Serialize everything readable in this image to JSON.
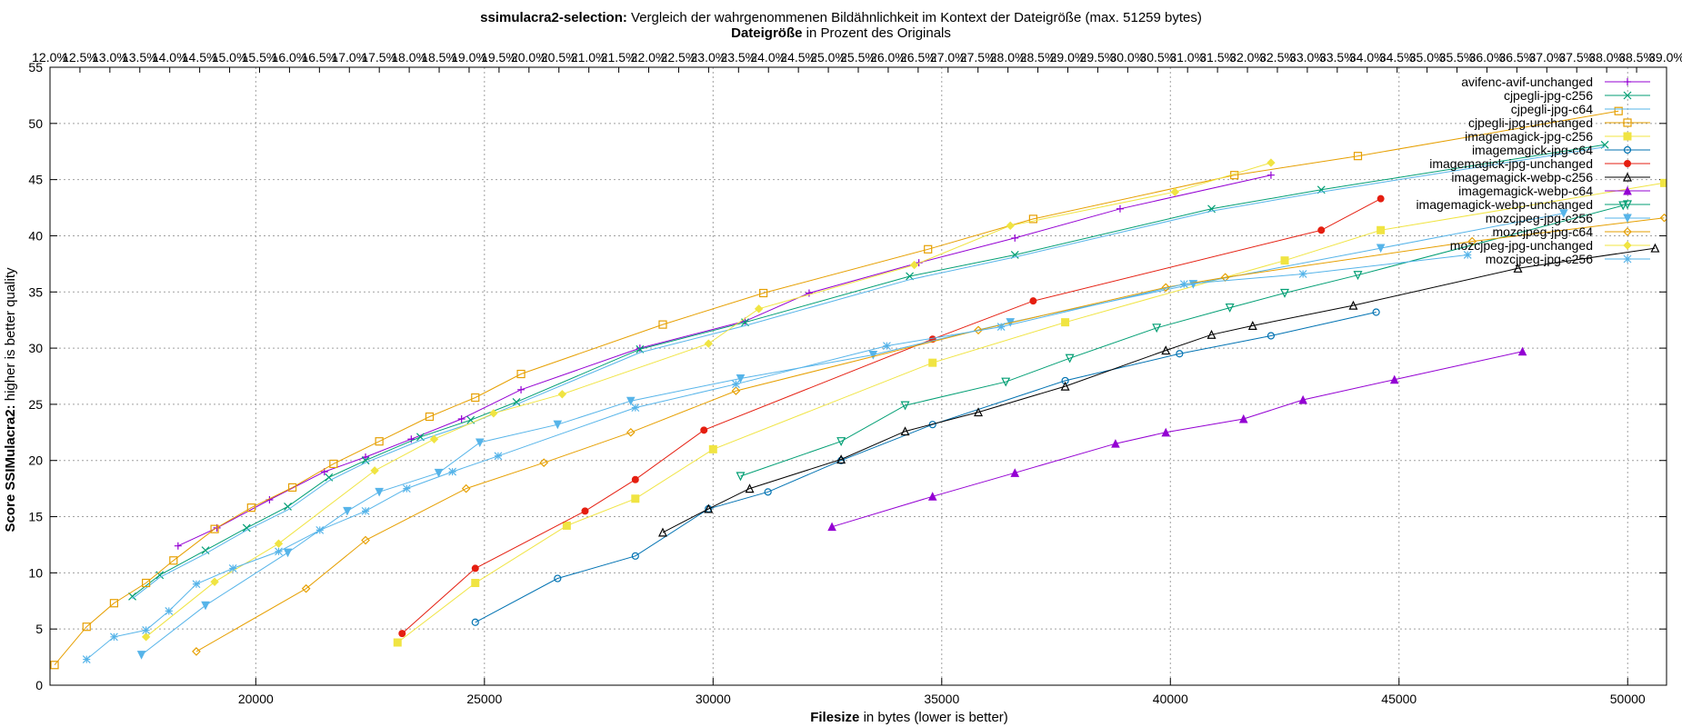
{
  "chart_data": {
    "type": "line",
    "title_bold": "ssimulacra2-selection:",
    "title_rest": " Vergleich der wahrgenommenen Bildähnlichkeit im Kontext der Dateigröße (max. 51259 bytes)",
    "x2label_bold": "Dateigröße",
    "x2label_rest": " in Prozent des Originals",
    "xlabel_bold": "Filesize",
    "xlabel_rest": " in bytes (lower is better)",
    "ylabel_bold": "Score SSIMulacra2:",
    "ylabel_rest": " higher is better quality",
    "xlim": [
      15500,
      50850
    ],
    "ylim": [
      0,
      55
    ],
    "x_ticks": [
      20000,
      25000,
      30000,
      35000,
      40000,
      45000,
      50000
    ],
    "y_ticks": [
      0,
      5,
      10,
      15,
      20,
      25,
      30,
      35,
      40,
      45,
      50,
      55
    ],
    "x2_ticks": [
      "12.0%",
      "12.5%",
      "13.0%",
      "13.5%",
      "14.0%",
      "14.5%",
      "15.0%",
      "15.5%",
      "16.0%",
      "16.5%",
      "17.0%",
      "17.5%",
      "18.0%",
      "18.5%",
      "19.0%",
      "19.5%",
      "20.0%",
      "20.5%",
      "21.0%",
      "21.5%",
      "22.0%",
      "22.5%",
      "23.0%",
      "23.5%",
      "24.0%",
      "24.5%",
      "25.0%",
      "25.5%",
      "26.0%",
      "26.5%",
      "27.0%",
      "27.5%",
      "28.0%",
      "28.5%",
      "29.0%",
      "29.5%",
      "30.0%",
      "30.5%",
      "31.0%",
      "31.5%",
      "32.0%",
      "32.5%",
      "33.0%",
      "33.5%",
      "34.0%",
      "34.5%",
      "35.0%",
      "35.5%",
      "36.0%",
      "36.5%",
      "37.0%",
      "37.5%",
      "38.0%",
      "38.5%",
      "39.0%"
    ],
    "grid": true,
    "legend_position": "top-right",
    "series": [
      {
        "name": "avifenc-avif-unchanged",
        "color": "#9400d3",
        "marker": "plus",
        "x": [
          18300,
          19150,
          20300,
          21500,
          22400,
          23400,
          24500,
          25800,
          28400,
          30700,
          32100,
          34500,
          36600,
          38900,
          42200
        ],
        "y": [
          12.4,
          14.0,
          16.5,
          19.0,
          20.3,
          21.9,
          23.7,
          26.3,
          30.0,
          32.4,
          34.9,
          37.6,
          39.8,
          42.4,
          45.4
        ]
      },
      {
        "name": "cjpegli-jpg-c256",
        "color": "#009e73",
        "marker": "x",
        "x": [
          17300,
          17900,
          18900,
          19800,
          20700,
          21600,
          22400,
          23600,
          24700,
          25700,
          28400,
          30700,
          34300,
          36600,
          40900,
          43300,
          49500
        ],
        "y": [
          7.9,
          9.8,
          12.0,
          14.0,
          15.9,
          18.5,
          20.0,
          22.1,
          23.6,
          25.2,
          29.9,
          32.3,
          36.4,
          38.3,
          42.4,
          44.1,
          48.1
        ]
      },
      {
        "name": "cjpegli-jpg-c64",
        "color": "#56b4e9",
        "marker": "none",
        "x": [
          17300,
          17900,
          18900,
          19800,
          20700,
          21600,
          22400,
          23600,
          24700,
          25700,
          28400,
          30700,
          34300,
          36600,
          40900,
          43300,
          49500
        ],
        "y": [
          7.7,
          9.6,
          11.7,
          13.8,
          15.6,
          18.2,
          19.8,
          21.8,
          23.3,
          25.0,
          29.6,
          32.0,
          36.1,
          38.1,
          42.2,
          43.9,
          47.9
        ]
      },
      {
        "name": "cjpegli-jpg-unchanged",
        "color": "#e69f00",
        "marker": "square",
        "x": [
          15600,
          16300,
          16900,
          17600,
          18200,
          19100,
          19900,
          20800,
          21700,
          22700,
          23800,
          24800,
          25800,
          28900,
          31100,
          34700,
          37000,
          41400,
          44100,
          49800
        ],
        "y": [
          1.8,
          5.2,
          7.3,
          9.1,
          11.1,
          13.9,
          15.8,
          17.6,
          19.7,
          21.7,
          23.9,
          25.6,
          27.7,
          32.1,
          34.9,
          38.8,
          41.5,
          45.4,
          47.1,
          51.1
        ]
      },
      {
        "name": "imagemagick-jpg-c256",
        "color": "#f0e442",
        "marker": "filledsquare",
        "x": [
          23100,
          24800,
          26800,
          28300,
          30000,
          34800,
          37700,
          42500,
          44600,
          50800
        ],
        "y": [
          3.8,
          9.1,
          14.2,
          16.6,
          21.0,
          28.7,
          32.3,
          37.8,
          40.5,
          44.7
        ]
      },
      {
        "name": "imagemagick-jpg-c64",
        "color": "#0072b2",
        "marker": "circle",
        "x": [
          24800,
          26600,
          28300,
          29900,
          31200,
          32800,
          34800,
          37700,
          40200,
          42200,
          44500
        ],
        "y": [
          5.6,
          9.5,
          11.5,
          15.7,
          17.2,
          20.0,
          23.2,
          27.1,
          29.5,
          31.1,
          33.2
        ]
      },
      {
        "name": "imagemagick-jpg-unchanged",
        "color": "#e51e10",
        "marker": "filledcircle",
        "x": [
          23200,
          24800,
          27200,
          28300,
          29800,
          34800,
          37000,
          43300,
          44600
        ],
        "y": [
          4.6,
          10.4,
          15.5,
          18.3,
          22.7,
          30.8,
          34.2,
          40.5,
          43.3
        ]
      },
      {
        "name": "imagemagick-webp-c256",
        "color": "#000000",
        "marker": "triangle",
        "x": [
          28900,
          29900,
          30800,
          32800,
          34200,
          35800,
          37700,
          39900,
          40900,
          41800,
          44000,
          47600,
          50600
        ],
        "y": [
          13.6,
          15.7,
          17.5,
          20.1,
          22.6,
          24.3,
          26.6,
          29.8,
          31.2,
          32.0,
          33.8,
          37.1,
          38.9
        ]
      },
      {
        "name": "imagemagick-webp-c64",
        "color": "#9400d3",
        "marker": "filledtriangle",
        "x": [
          32600,
          34800,
          36600,
          38800,
          39900,
          41600,
          42900,
          44900,
          47700
        ],
        "y": [
          14.1,
          16.8,
          18.9,
          21.5,
          22.5,
          23.7,
          25.4,
          27.2,
          29.7
        ]
      },
      {
        "name": "imagemagick-webp-unchanged",
        "color": "#009e73",
        "marker": "downtriangle",
        "x": [
          30600,
          32800,
          34200,
          36400,
          37800,
          39700,
          41300,
          42500,
          44100,
          49900
        ],
        "y": [
          18.6,
          21.7,
          24.9,
          27.0,
          29.1,
          31.8,
          33.6,
          34.9,
          36.5,
          42.7
        ]
      },
      {
        "name": "mozcjpeg-jpg-c256",
        "color": "#56b4e9",
        "marker": "filleddowntriangle",
        "x": [
          17500,
          18900,
          20700,
          22000,
          22700,
          24000,
          24900,
          26600,
          28200,
          30600,
          33500,
          36500,
          40500,
          44600,
          48600
        ],
        "y": [
          2.7,
          7.1,
          11.8,
          15.5,
          17.2,
          18.9,
          21.6,
          23.2,
          25.3,
          27.3,
          29.4,
          32.3,
          35.7,
          38.9,
          42.0
        ]
      },
      {
        "name": "mozcjpeg-jpg-c64",
        "color": "#e69f00",
        "marker": "diamond",
        "x": [
          18700,
          21100,
          22400,
          24600,
          26300,
          28200,
          30500,
          35800,
          39900,
          41200,
          46600,
          50800
        ],
        "y": [
          3.0,
          8.6,
          12.9,
          17.5,
          19.8,
          22.5,
          26.2,
          31.6,
          35.4,
          36.3,
          39.5,
          41.6
        ]
      },
      {
        "name": "mozcjpeg-jpg-unchanged",
        "color": "#f0e442",
        "marker": "filleddiamond",
        "x": [
          17600,
          19100,
          20500,
          22600,
          23900,
          25200,
          26700,
          29900,
          31000,
          34400,
          36500,
          40100,
          42200
        ],
        "y": [
          4.3,
          9.2,
          12.6,
          19.1,
          21.9,
          24.2,
          25.9,
          30.4,
          33.5,
          37.4,
          40.9,
          43.9,
          46.5
        ]
      },
      {
        "name": "mozcjpeg-jpg-c256",
        "color": "#56b4e9",
        "marker": "star",
        "x": [
          16300,
          16900,
          17600,
          18100,
          18700,
          19500,
          20500,
          21400,
          22400,
          23300,
          24300,
          25300,
          28300,
          30500,
          33800,
          36300,
          40300,
          42900,
          46500
        ],
        "y": [
          2.3,
          4.3,
          4.9,
          6.6,
          9.0,
          10.4,
          11.9,
          13.8,
          15.5,
          17.5,
          19.0,
          20.4,
          24.7,
          26.8,
          30.2,
          31.9,
          35.7,
          36.6,
          38.3
        ]
      }
    ]
  }
}
